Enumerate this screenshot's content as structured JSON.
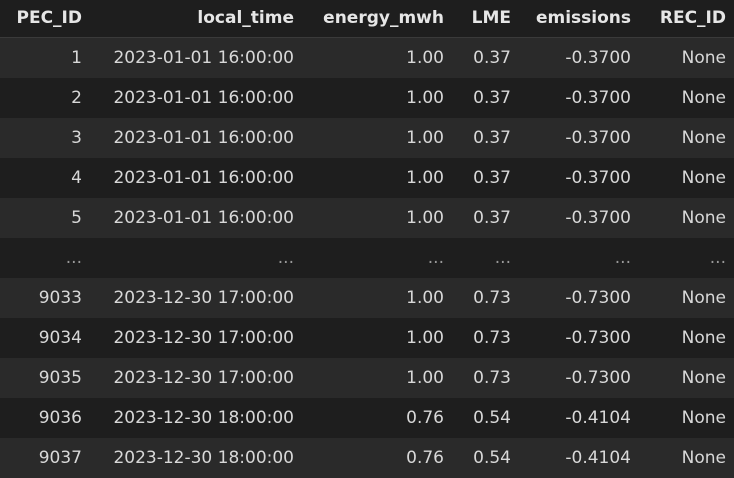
{
  "columns": [
    "PEC_ID",
    "local_time",
    "energy_mwh",
    "LME",
    "emissions",
    "REC_ID"
  ],
  "rows": [
    [
      "1",
      "2023-01-01 16:00:00",
      "1.00",
      "0.37",
      "-0.3700",
      "None"
    ],
    [
      "2",
      "2023-01-01 16:00:00",
      "1.00",
      "0.37",
      "-0.3700",
      "None"
    ],
    [
      "3",
      "2023-01-01 16:00:00",
      "1.00",
      "0.37",
      "-0.3700",
      "None"
    ],
    [
      "4",
      "2023-01-01 16:00:00",
      "1.00",
      "0.37",
      "-0.3700",
      "None"
    ],
    [
      "5",
      "2023-01-01 16:00:00",
      "1.00",
      "0.37",
      "-0.3700",
      "None"
    ],
    [
      "...",
      "...",
      "...",
      "...",
      "...",
      "..."
    ],
    [
      "9033",
      "2023-12-30 17:00:00",
      "1.00",
      "0.73",
      "-0.7300",
      "None"
    ],
    [
      "9034",
      "2023-12-30 17:00:00",
      "1.00",
      "0.73",
      "-0.7300",
      "None"
    ],
    [
      "9035",
      "2023-12-30 17:00:00",
      "1.00",
      "0.73",
      "-0.7300",
      "None"
    ],
    [
      "9036",
      "2023-12-30 18:00:00",
      "0.76",
      "0.54",
      "-0.4104",
      "None"
    ],
    [
      "9037",
      "2023-12-30 18:00:00",
      "0.76",
      "0.54",
      "-0.4104",
      "None"
    ]
  ]
}
